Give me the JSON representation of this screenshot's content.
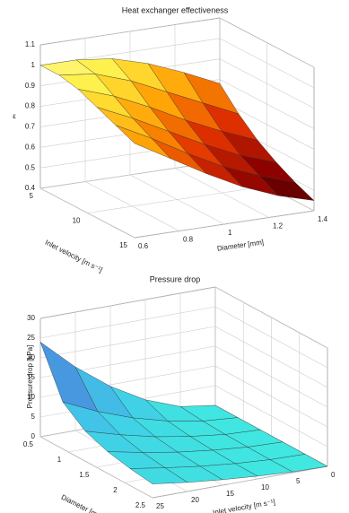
{
  "chart_data": [
    {
      "type": "surface",
      "title": "Heat exchanger effectiveness",
      "xlabel": "Inlet velocity [m s⁻¹]",
      "ylabel": "Diameter [mm]",
      "zlabel": "ε",
      "x": [
        5,
        7,
        9,
        11,
        13,
        15
      ],
      "y": [
        0.6,
        0.76,
        0.92,
        1.08,
        1.24,
        1.4
      ],
      "z": [
        [
          1.0,
          1.0,
          0.98,
          0.93,
          0.86,
          0.78
        ],
        [
          1.0,
          0.98,
          0.92,
          0.84,
          0.76,
          0.68
        ],
        [
          0.98,
          0.92,
          0.84,
          0.75,
          0.67,
          0.6
        ],
        [
          0.94,
          0.86,
          0.77,
          0.68,
          0.6,
          0.54
        ],
        [
          0.9,
          0.81,
          0.71,
          0.62,
          0.55,
          0.49
        ],
        [
          0.86,
          0.76,
          0.66,
          0.57,
          0.5,
          0.45
        ]
      ],
      "xlim": [
        5,
        15
      ],
      "xticks": [
        5,
        10,
        15
      ],
      "ylim": [
        0.6,
        1.4
      ],
      "yticks": [
        0.6,
        0.8,
        1,
        1.2,
        1.4
      ],
      "zlim": [
        0.4,
        1.1
      ],
      "zticks": [
        0.4,
        0.5,
        0.6,
        0.7,
        0.8,
        0.9,
        1,
        1.1
      ],
      "colormap": [
        "#200000",
        "#8a0000",
        "#e03000",
        "#ff9a00",
        "#fff040",
        "#fffff0"
      ],
      "grid": true
    },
    {
      "type": "surface",
      "title": "Pressure drop",
      "xlabel": "Diameter [mm]",
      "ylabel": "Inlet velocity [m s⁻¹]",
      "zlabel": "Pressure drop [kPa]",
      "x": [
        0.5,
        0.9,
        1.3,
        1.7,
        2.1,
        2.5
      ],
      "y": [
        25,
        20,
        15,
        10,
        5,
        0
      ],
      "z": [
        [
          24,
          16.1,
          9.6,
          4.6,
          1.3,
          0
        ],
        [
          11.9,
          7.9,
          4.7,
          2.3,
          0.7,
          0
        ],
        [
          7.6,
          5.1,
          3.0,
          1.5,
          0.4,
          0
        ],
        [
          5.5,
          3.7,
          2.2,
          1.1,
          0.3,
          0
        ],
        [
          4.3,
          2.9,
          1.7,
          0.8,
          0.2,
          0
        ],
        [
          3.5,
          2.3,
          1.4,
          0.7,
          0.2,
          0
        ]
      ],
      "xlim": [
        0.5,
        2.5
      ],
      "xticks": [
        0.5,
        1,
        1.5,
        2,
        2.5
      ],
      "ylim": [
        25,
        0
      ],
      "yticks": [
        25,
        20,
        15,
        10,
        5,
        0
      ],
      "zlim": [
        0,
        30
      ],
      "zticks": [
        0,
        5,
        10,
        15,
        20,
        25,
        30
      ],
      "colormap": [
        "#40e8e0",
        "#40c8e8",
        "#4898e0",
        "#5868d0",
        "#7038a8"
      ],
      "grid": true
    }
  ]
}
